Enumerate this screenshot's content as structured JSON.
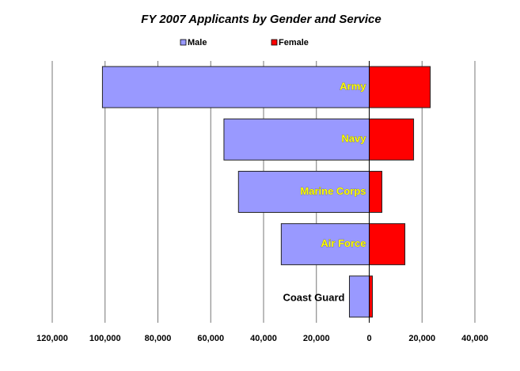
{
  "chart_data": {
    "type": "butterfly-bar",
    "title": "FY 2007 Applicants by Gender and Service",
    "categories": [
      "Army",
      "Navy",
      "Marine Corps",
      "Air Force",
      "Coast Guard"
    ],
    "series": [
      {
        "name": "Male",
        "color": "#9999ff",
        "values": [
          -101000,
          -55000,
          -49500,
          -33300,
          -7500
        ]
      },
      {
        "name": "Female",
        "color": "#ff0000",
        "values": [
          23100,
          16800,
          4800,
          13500,
          1200
        ]
      }
    ],
    "xlim": [
      -120000,
      40000
    ],
    "xticks": [
      {
        "value": -120000,
        "label": "120,000"
      },
      {
        "value": -100000,
        "label": "100,000"
      },
      {
        "value": -80000,
        "label": "80,000"
      },
      {
        "value": -60000,
        "label": "60,000"
      },
      {
        "value": -40000,
        "label": "40,000"
      },
      {
        "value": -20000,
        "label": "20,000"
      },
      0,
      {
        "value": 20000,
        "label": "20,000"
      },
      {
        "value": 40000,
        "label": "40,000"
      }
    ],
    "grid": true,
    "legend": "top"
  }
}
